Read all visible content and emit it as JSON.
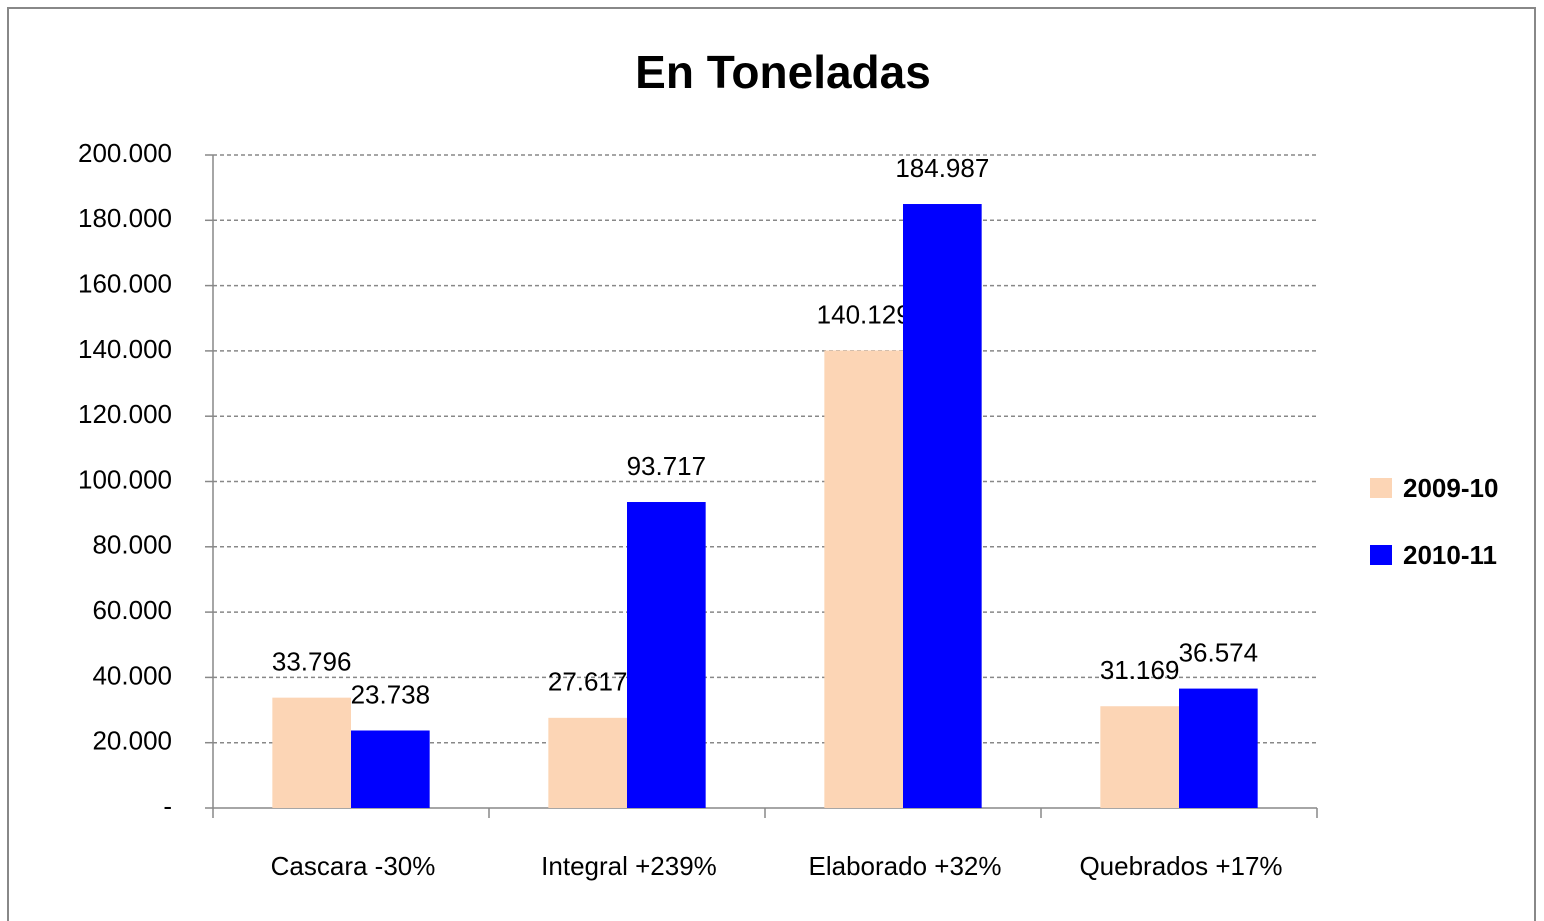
{
  "chart_data": {
    "type": "bar",
    "title": "En Toneladas",
    "categories": [
      "Cascara -30%",
      "Integral +239%",
      "Elaborado +32%",
      "Quebrados +17%"
    ],
    "series": [
      {
        "name": "2009-10",
        "color": "#fcd5b5",
        "values": [
          33796,
          27617,
          140129,
          31169
        ],
        "value_labels": [
          "33.796",
          "27.617",
          "140.129",
          "31.169"
        ]
      },
      {
        "name": "2010-11",
        "color": "#0000ff",
        "values": [
          23738,
          93717,
          184987,
          36574
        ],
        "value_labels": [
          "23.738",
          "93.717",
          "184.987",
          "36.574"
        ]
      }
    ],
    "ylim": [
      0,
      200000
    ],
    "yticks": [
      {
        "value": 0,
        "label": "-"
      },
      {
        "value": 20000,
        "label": "20.000"
      },
      {
        "value": 40000,
        "label": "40.000"
      },
      {
        "value": 60000,
        "label": "60.000"
      },
      {
        "value": 80000,
        "label": "80.000"
      },
      {
        "value": 100000,
        "label": "100.000"
      },
      {
        "value": 120000,
        "label": "120.000"
      },
      {
        "value": 140000,
        "label": "140.000"
      },
      {
        "value": 160000,
        "label": "160.000"
      },
      {
        "value": 180000,
        "label": "180.000"
      },
      {
        "value": 200000,
        "label": "200.000"
      }
    ],
    "grid": true,
    "legend": "right"
  }
}
